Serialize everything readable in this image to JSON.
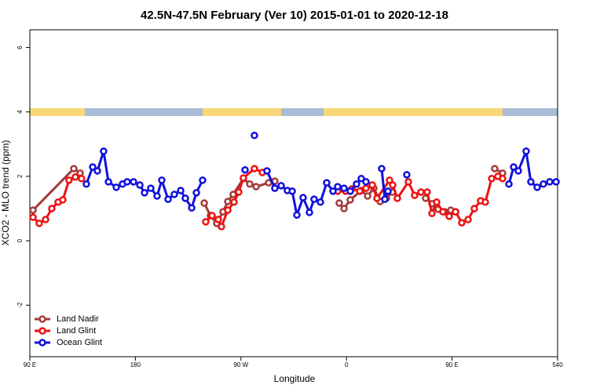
{
  "chart_data": {
    "type": "line",
    "title": "42.5N-47.5N February (Ver 10)   2015-01-01 to 2020-12-18",
    "x_label": "Longitude",
    "y_label": "XCO2 - MLO trend (ppm)",
    "xlim": [
      90,
      540
    ],
    "xticks": [
      {
        "value": 90,
        "label": "90 E"
      },
      180,
      {
        "value": 270,
        "label": "90 W"
      },
      {
        "value": 360,
        "label": "0"
      },
      {
        "value": 450,
        "label": "90 E"
      },
      540
    ],
    "ylim": [
      -3.6,
      6.55
    ],
    "yticks": [
      -2,
      0,
      2,
      4,
      6
    ],
    "legend": "bottom-left",
    "series": [
      {
        "name": "Land Nadir",
        "color": "#a33a3a",
        "x": [
          92.7,
          127.5,
          132.9,
          null,
          238.7,
          244,
          249.4,
          254.7,
          258.8,
          263.4,
          272.1,
          277.5,
          282.9,
          293.6,
          298.9,
          null,
          353.8,
          357.9,
          363.2,
          372.6,
          378,
          383.3,
          388.7,
          394,
          399.4,
          null,
          427.5,
          432.9,
          438.2,
          443.6,
          448.9,
          453,
          null,
          486.4,
          493.1
        ],
        "values": [
          0.95,
          2.24,
          2.1,
          null,
          1.17,
          0.78,
          0.54,
          0.9,
          1.22,
          1.44,
          1.93,
          1.76,
          1.68,
          1.8,
          1.85,
          null,
          1.17,
          1.0,
          1.27,
          1.56,
          1.39,
          1.63,
          1.22,
          1.32,
          1.51,
          null,
          1.32,
          1.15,
          0.98,
          0.9,
          0.95,
          0.9,
          null,
          2.24,
          2.1
        ]
      },
      {
        "name": "Land Glint",
        "color": "#ee1111",
        "x": [
          92.7,
          98,
          103.4,
          108.7,
          114.1,
          118.1,
          123.4,
          128.8,
          134.1,
          null,
          240,
          245.4,
          250.7,
          253.4,
          258.8,
          264.1,
          268.1,
          272.1,
          281.5,
          288.2,
          null,
          352.5,
          359.2,
          364.6,
          371.3,
          376.6,
          382,
          386,
          396.7,
          399.4,
          403.4,
          412.8,
          418.1,
          423.5,
          428.8,
          432.9,
          436.9,
          442.2,
          447.6,
          453,
          458.3,
          463.7,
          469,
          474.4,
          478.4,
          483.8,
          489.1,
          493.1
        ],
        "values": [
          0.73,
          0.54,
          0.66,
          1.0,
          1.2,
          1.27,
          1.88,
          1.98,
          1.93,
          null,
          0.59,
          0.78,
          0.66,
          0.44,
          0.95,
          1.2,
          1.51,
          1.95,
          2.24,
          2.12,
          null,
          1.54,
          1.54,
          1.61,
          1.54,
          1.63,
          1.73,
          1.32,
          1.88,
          1.73,
          1.32,
          1.83,
          1.41,
          1.51,
          1.51,
          0.85,
          1.2,
          0.9,
          0.76,
          0.9,
          0.56,
          0.66,
          1.0,
          1.24,
          1.2,
          1.93,
          2.0,
          1.93
        ]
      },
      {
        "name": "Ocean Glint",
        "color": "#1010dd",
        "x": [
          138.2,
          143.6,
          147.6,
          152.9,
          157,
          163.7,
          169,
          173,
          178.4,
          183.8,
          187.8,
          193.1,
          198.5,
          202.5,
          207.9,
          213.2,
          218.6,
          222.6,
          228,
          232,
          237.3,
          null,
          273.5,
          null,
          281.5,
          null,
          292.2,
          298.9,
          304.3,
          309.6,
          313.7,
          317.7,
          323,
          328.4,
          332.4,
          337.8,
          343.1,
          348.5,
          352.5,
          357.9,
          363.2,
          368.6,
          372.6,
          376.6,
          null,
          390,
          392.7,
          395.4,
          null,
          411.4,
          null,
          498.5,
          502.5,
          506.5,
          513.2,
          517.2,
          522.6,
          527.9,
          533.3,
          538.7
        ],
        "values": [
          1.76,
          2.29,
          2.17,
          2.78,
          1.83,
          1.66,
          1.76,
          1.83,
          1.83,
          1.73,
          1.49,
          1.63,
          1.39,
          1.88,
          1.29,
          1.44,
          1.56,
          1.32,
          1.02,
          1.49,
          1.88,
          null,
          2.2,
          null,
          3.27,
          null,
          2.17,
          1.63,
          1.71,
          1.56,
          1.54,
          0.8,
          1.34,
          0.88,
          1.29,
          1.2,
          1.8,
          1.54,
          1.68,
          1.63,
          1.54,
          1.76,
          1.93,
          1.83,
          null,
          2.24,
          1.29,
          1.54,
          null,
          2.05,
          null,
          1.76,
          2.29,
          2.17,
          2.78,
          1.83,
          1.66,
          1.76,
          1.83,
          1.83
        ]
      }
    ]
  }
}
